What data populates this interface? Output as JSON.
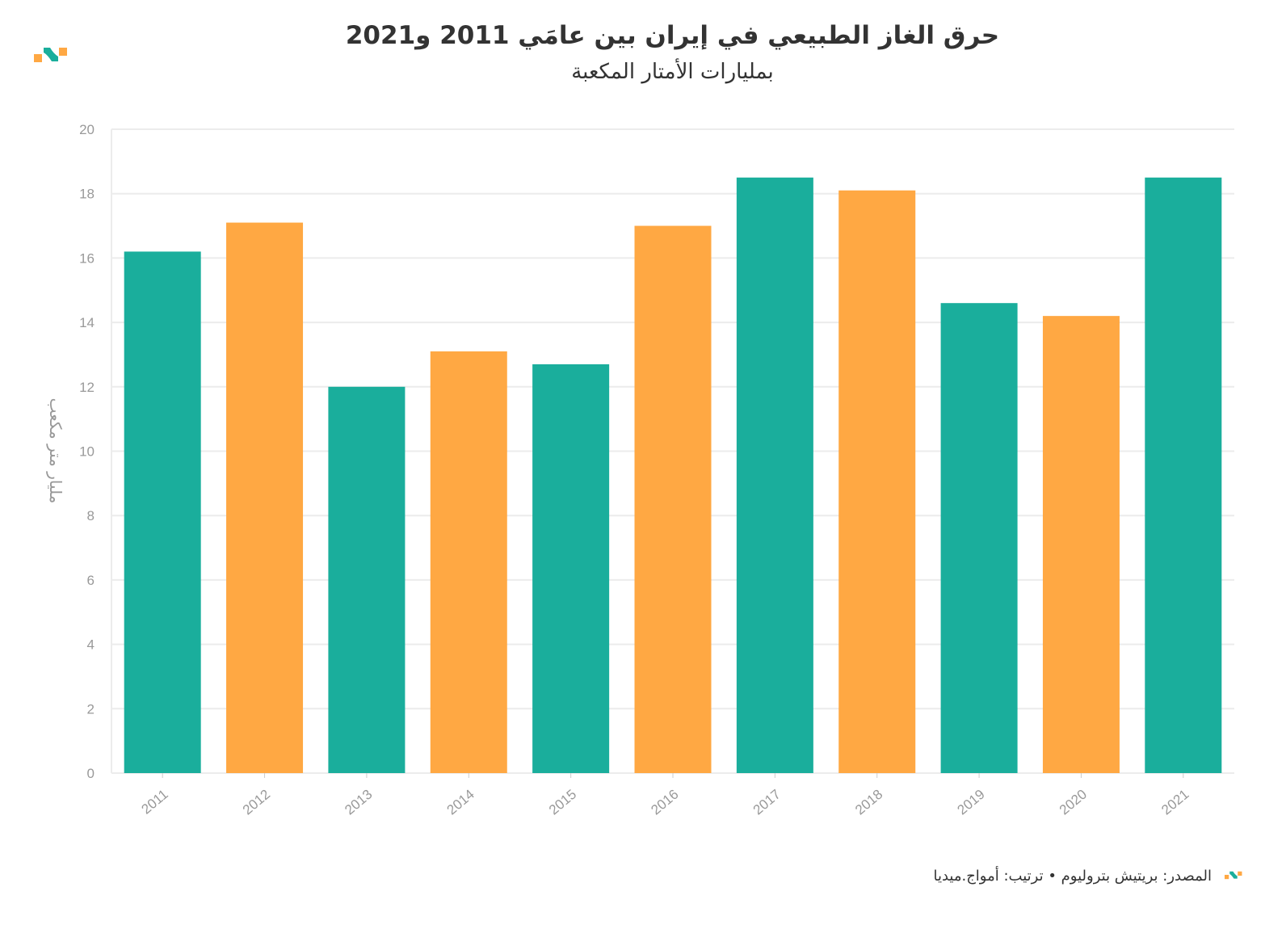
{
  "title": "حرق الغاز الطبيعي في إيران بين عامَي 2011 و2021",
  "subtitle": "بمليارات الأمتار المكعبة",
  "footer": "المصدر: بريتيش بتروليوم • ترتيب: أمواج.ميديا",
  "colors": {
    "teal": "#1aae9c",
    "orange": "#ffa843",
    "grid": "#ececec",
    "axis_text": "#999999"
  },
  "chart_data": {
    "type": "bar",
    "title": "حرق الغاز الطبيعي في إيران بين عامَي 2011 و2021",
    "subtitle": "بمليارات الأمتار المكعبة",
    "xlabel": "",
    "ylabel": "مليار متر مكعب",
    "categories": [
      "2011",
      "2012",
      "2013",
      "2014",
      "2015",
      "2016",
      "2017",
      "2018",
      "2019",
      "2020",
      "2021"
    ],
    "values": [
      16.2,
      17.1,
      12.0,
      13.1,
      12.7,
      17.0,
      18.5,
      18.1,
      14.6,
      14.2,
      18.5
    ],
    "bar_colors": [
      "teal",
      "orange",
      "teal",
      "orange",
      "teal",
      "orange",
      "teal",
      "orange",
      "teal",
      "orange",
      "teal"
    ],
    "ylim": [
      0,
      20
    ],
    "yticks": [
      "0",
      "2",
      "4",
      "6",
      "8",
      "10",
      "12",
      "14",
      "16",
      "18",
      "20"
    ],
    "grid": true
  }
}
